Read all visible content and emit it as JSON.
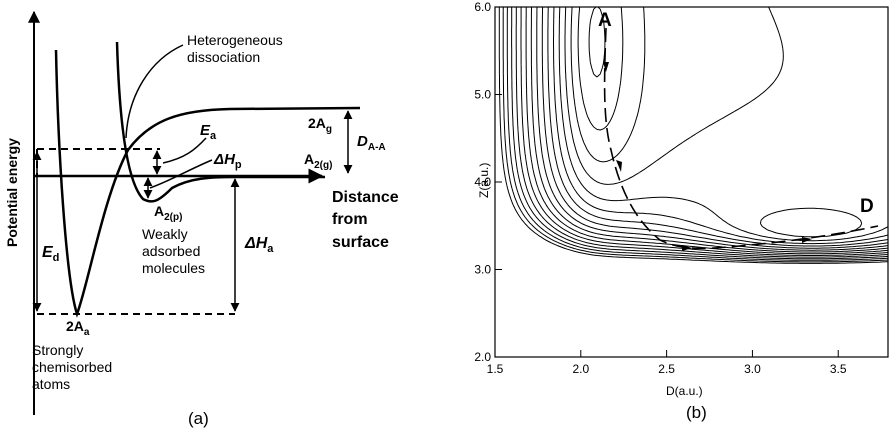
{
  "panel_a": {
    "ylabel": "Potential energy",
    "xlabel_line1": "Distance",
    "xlabel_line2": "from",
    "xlabel_line3": "surface",
    "hetero_line1": "Heterogeneous",
    "hetero_line2": "dissociation",
    "ea": "E",
    "ea_sub": "a",
    "dhp": "ΔH",
    "dhp_sub": "p",
    "a2g_top": "2A",
    "a2g_top_sub": "g",
    "daa": "D",
    "daa_sub": "A-A",
    "a2g": "A",
    "a2g_sub": "2(g)",
    "a2p": "A",
    "a2p_sub": "2(p)",
    "weak_line1": "Weakly",
    "weak_line2": "adsorbed",
    "weak_line3": "molecules",
    "dha": "ΔH",
    "dha_sub": "a",
    "ed": "E",
    "ed_sub": "d",
    "two_aa": "2A",
    "two_aa_sub": "a",
    "strong_line1": "Strongly",
    "strong_line2": "chemisorbed",
    "strong_line3": "atoms",
    "caption": "(a)"
  },
  "panel_b": {
    "ylabel": "Z(a.u.)",
    "xlabel": "D(a.u.)",
    "x_ticks": [
      "1.5",
      "2.0",
      "2.5",
      "3.0",
      "3.5"
    ],
    "y_ticks": [
      "2.0",
      "3.0",
      "4.0",
      "5.0",
      "6.0"
    ],
    "label_a": "A",
    "label_d": "D",
    "caption": "(b)"
  }
}
